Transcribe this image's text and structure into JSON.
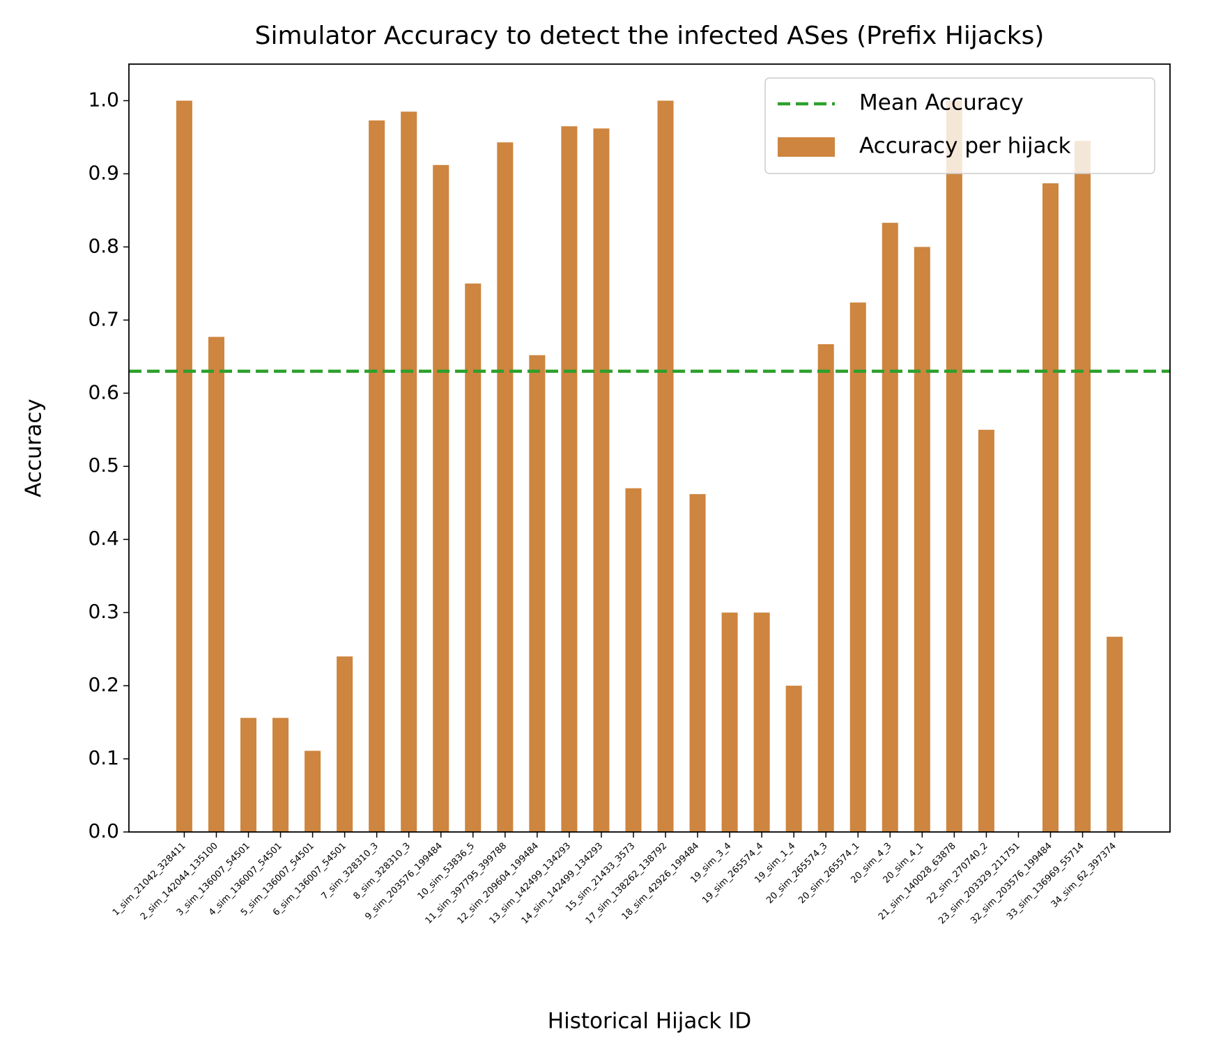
{
  "chart_data": {
    "type": "bar",
    "title": "Simulator Accuracy to detect the infected ASes (Prefix Hijacks)",
    "x_label": "Historical Hijack ID",
    "y_label": "Accuracy",
    "categories": [
      "1_sim_21042_328411",
      "2_sim_142044_135100",
      "3_sim_136007_54501",
      "4_sim_136007_54501",
      "5_sim_136007_54501",
      "6_sim_136007_54501",
      "7_sim_328310_3",
      "8_sim_328310_3",
      "9_sim_203576_199484",
      "10_sim_53836_5",
      "11_sim_397795_399788",
      "12_sim_209604_199484",
      "13_sim_142499_134293",
      "14_sim_142499_134293",
      "15_sim_21433_3573",
      "17_sim_138262_138792",
      "18_sim_42926_199484",
      "19_sim_3_4",
      "19_sim_265574_4",
      "19_sim_1_4",
      "20_sim_265574_3",
      "20_sim_265574_1",
      "20_sim_4_3",
      "20_sim_4_1",
      "21_sim_140028_63878",
      "22_sim_270740_2",
      "23_sim_203329_211751",
      "32_sim_203576_199484",
      "33_sim_136969_55714",
      "34_sim_62_397374"
    ],
    "series": [
      {
        "name": "Accuracy per hijack",
        "color": "#cd853f",
        "values": [
          1.0,
          0.677,
          0.156,
          0.156,
          0.111,
          0.24,
          0.973,
          0.985,
          0.912,
          0.75,
          0.943,
          0.652,
          0.965,
          0.962,
          0.47,
          1.0,
          0.462,
          0.3,
          0.3,
          0.2,
          0.667,
          0.724,
          0.833,
          0.8,
          1.0,
          0.55,
          0,
          0.887,
          0.945,
          0.267
        ]
      }
    ],
    "mean_line": {
      "name": "Mean Accuracy",
      "color": "#2ca02c",
      "value": 0.63
    },
    "ylim": [
      0,
      1.05
    ],
    "yticks": [
      {
        "value": 0,
        "label": "0.0"
      },
      {
        "value": 0.1,
        "label": "0.1"
      },
      {
        "value": 0.2,
        "label": "0.2"
      },
      {
        "value": 0.3,
        "label": "0.3"
      },
      {
        "value": 0.4,
        "label": "0.4"
      },
      {
        "value": 0.5,
        "label": "0.5"
      },
      {
        "value": 0.6,
        "label": "0.6"
      },
      {
        "value": 0.7,
        "label": "0.7"
      },
      {
        "value": 0.8,
        "label": "0.8"
      },
      {
        "value": 0.9,
        "label": "0.9"
      },
      {
        "value": 1.0,
        "label": "1.0"
      }
    ],
    "legend": "upper right"
  }
}
